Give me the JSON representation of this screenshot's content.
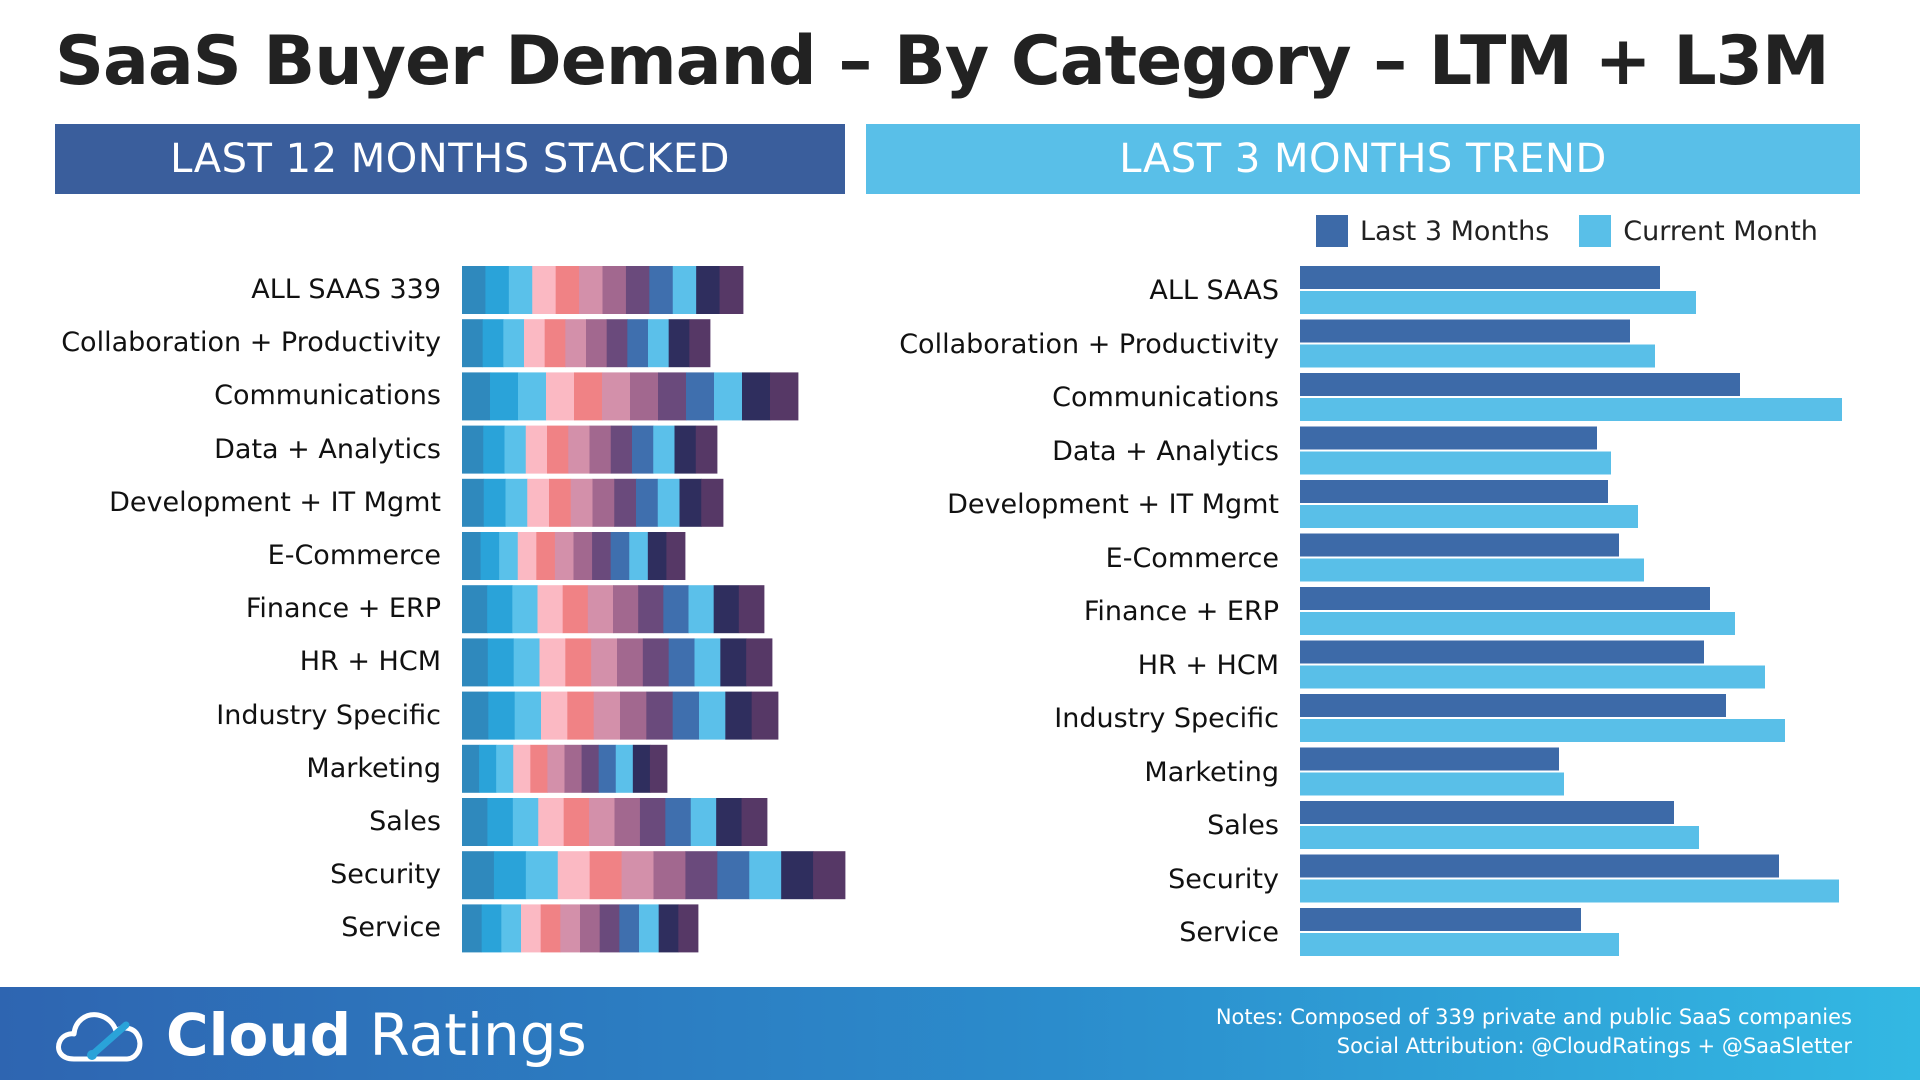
{
  "title": "SaaS Buyer Demand – By Category – LTM + L3M",
  "panels": {
    "left_header": "LAST 12 MONTHS STACKED",
    "right_header": "LAST 3 MONTHS TREND"
  },
  "legend": {
    "last3": "Last 3 Months",
    "current": "Current Month"
  },
  "colors": {
    "left_header_bg": "#3a5e9c",
    "right_header_bg": "#59bfe8",
    "last3": "#3d6aa8",
    "current": "#59bfe8",
    "stack_segments": [
      "#2f89bd",
      "#2aa3d9",
      "#5ac1ea",
      "#fbb9c3",
      "#f08285",
      "#d390aa",
      "#a2688f",
      "#6a4a7c",
      "#3f6fae",
      "#5bc0ea",
      "#2f2e5e",
      "#563866"
    ]
  },
  "chart_data": [
    {
      "type": "bar",
      "stacked": true,
      "orientation": "horizontal",
      "title": "LAST 12 MONTHS STACKED",
      "categories": [
        "ALL SAAS 339",
        "Collaboration + Productivity",
        "Communications",
        "Data + Analytics",
        "Development + IT Mgmt",
        "E-Commerce",
        "Finance + ERP",
        "HR + HCM",
        "Industry Specific",
        "Marketing",
        "Sales",
        "Security",
        "Service"
      ],
      "segments_per_bar": 12,
      "values": [
        281,
        248,
        336,
        255,
        261,
        223,
        302,
        310,
        316,
        205,
        305,
        383,
        236
      ],
      "grid": false
    },
    {
      "type": "bar",
      "orientation": "horizontal",
      "title": "LAST 3 MONTHS TREND",
      "categories": [
        "ALL SAAS",
        "Collaboration + Productivity",
        "Communications",
        "Data + Analytics",
        "Development + IT Mgmt",
        "E-Commerce",
        "Finance + ERP",
        "HR + HCM",
        "Industry Specific",
        "Marketing",
        "Sales",
        "Security",
        "Service"
      ],
      "series": [
        {
          "name": "Last 3 Months",
          "values": [
            360,
            330,
            440,
            297,
            308,
            319,
            410,
            404,
            426,
            259,
            374,
            479,
            281
          ]
        },
        {
          "name": "Current Month",
          "values": [
            396,
            355,
            542,
            311,
            338,
            344,
            435,
            465,
            485,
            264,
            399,
            539,
            319
          ]
        }
      ],
      "legend": "top-right",
      "grid": false
    }
  ],
  "footer": {
    "logo_bold": "Cloud",
    "logo_light": "Ratings",
    "notes_line1": "Notes: Composed of 339 private and public SaaS companies",
    "notes_line2": "Social Attribution: @CloudRatings + @SaaSletter"
  }
}
